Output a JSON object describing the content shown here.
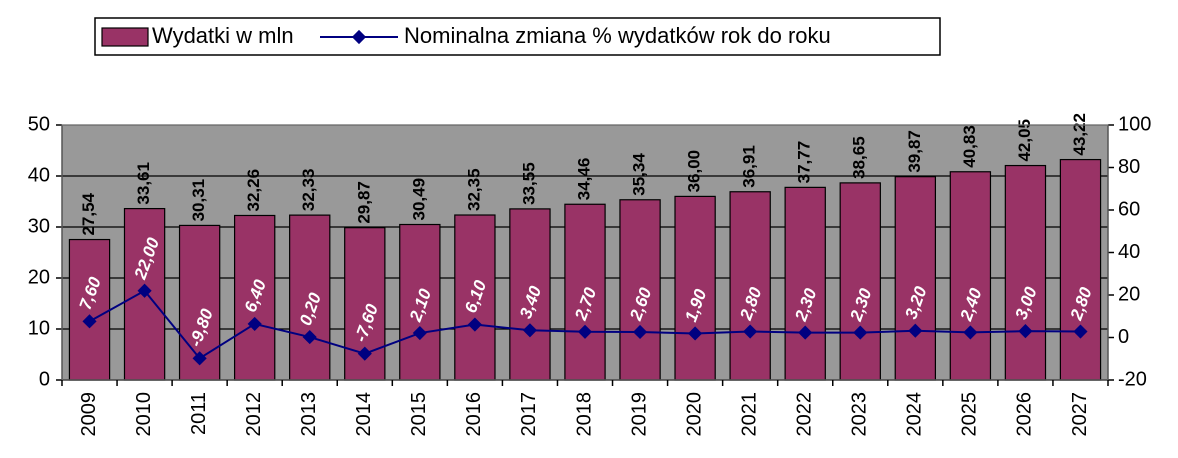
{
  "chart_data": {
    "type": "bar_line",
    "categories": [
      "2009",
      "2010",
      "2011",
      "2012",
      "2013",
      "2014",
      "2015",
      "2016",
      "2017",
      "2018",
      "2019",
      "2020",
      "2021",
      "2022",
      "2023",
      "2024",
      "2025",
      "2026",
      "2027"
    ],
    "series": [
      {
        "name": "Wydatki w mln",
        "type": "bar",
        "color": "#993366",
        "axis": "y",
        "values": [
          27.54,
          33.61,
          30.31,
          32.26,
          32.33,
          29.87,
          30.49,
          32.35,
          33.55,
          34.46,
          35.34,
          36.0,
          36.91,
          37.77,
          38.65,
          39.87,
          40.83,
          42.05,
          43.22
        ],
        "value_labels": [
          "27,54",
          "33,61",
          "30,31",
          "32,26",
          "32,33",
          "29,87",
          "30,49",
          "32,35",
          "33,55",
          "34,46",
          "35,34",
          "36,00",
          "36,91",
          "37,77",
          "38,65",
          "39,87",
          "40,83",
          "42,05",
          "43,22"
        ]
      },
      {
        "name": "Nominalna zmiana % wydatków rok do roku",
        "type": "line",
        "color": "#000080",
        "axis": "y2",
        "values": [
          7.6,
          22.0,
          -9.8,
          6.4,
          0.2,
          -7.6,
          2.1,
          6.1,
          3.4,
          2.7,
          2.6,
          1.9,
          2.8,
          2.3,
          2.3,
          3.2,
          2.4,
          3.0,
          2.8
        ],
        "value_labels": [
          "7,60",
          "22,00",
          "-9,80",
          "6,40",
          "0,20",
          "-7,60",
          "2,10",
          "6,10",
          "3,40",
          "2,70",
          "2,60",
          "1,90",
          "2,80",
          "2,30",
          "2,30",
          "3,20",
          "2,40",
          "3,00",
          "2,80"
        ]
      }
    ],
    "ylim": [
      0,
      50
    ],
    "yticks": [
      0,
      10,
      20,
      30,
      40,
      50
    ],
    "y2lim": [
      -20,
      100
    ],
    "y2ticks": [
      -20,
      0,
      20,
      40,
      60,
      80,
      100
    ],
    "grid": true,
    "plot_background": "#999999",
    "legend": "top"
  }
}
